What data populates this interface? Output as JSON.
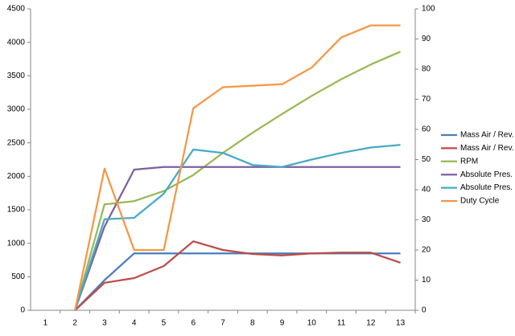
{
  "chart_data": {
    "type": "line",
    "categories": [
      1,
      2,
      3,
      4,
      5,
      6,
      7,
      8,
      9,
      10,
      11,
      12,
      13
    ],
    "ylim": [
      0,
      4500
    ],
    "yticks": [
      0,
      500,
      1000,
      1500,
      2000,
      2500,
      3000,
      3500,
      4000,
      4500
    ],
    "y2lim": [
      0,
      100
    ],
    "y2ticks": [
      0,
      10,
      20,
      30,
      40,
      50,
      60,
      70,
      80,
      90,
      100
    ],
    "grid": false,
    "legend": "right",
    "series": [
      {
        "name": "Mass Air / Rev.",
        "color": "#4a7ebb",
        "values": [
          null,
          0,
          450,
          850,
          850,
          850,
          850,
          850,
          850,
          850,
          850,
          850,
          850
        ]
      },
      {
        "name": "Mass Air / Rev.",
        "color": "#be4b48",
        "values": [
          null,
          0,
          410,
          480,
          660,
          1030,
          900,
          840,
          820,
          850,
          860,
          860,
          710
        ]
      },
      {
        "name": "RPM",
        "color": "#98b954",
        "values": [
          null,
          0,
          1580,
          1630,
          1780,
          2020,
          2350,
          2650,
          2930,
          3200,
          3450,
          3670,
          3860
        ]
      },
      {
        "name": "Absolute Pres.",
        "color": "#7d60a0",
        "values": [
          null,
          0,
          1250,
          2100,
          2140,
          2140,
          2140,
          2140,
          2140,
          2140,
          2140,
          2140,
          2140
        ]
      },
      {
        "name": "Absolute Pres.",
        "color": "#46aac5",
        "values": [
          null,
          0,
          1360,
          1380,
          1740,
          2400,
          2350,
          2170,
          2140,
          2250,
          2350,
          2430,
          2470
        ]
      },
      {
        "name": "Duty Cycle",
        "color": "#f79646",
        "axis": "y2",
        "values": [
          null,
          0,
          47,
          20,
          20,
          67,
          74,
          74.5,
          75,
          80.5,
          90.5,
          94.5,
          94.5
        ]
      }
    ]
  }
}
